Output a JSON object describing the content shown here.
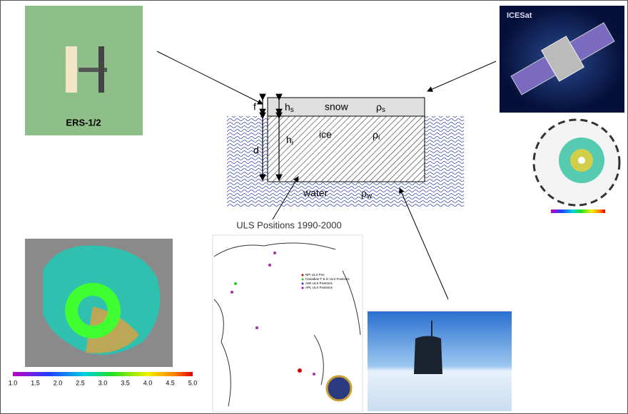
{
  "satellites": {
    "ers": "ERS-1/2",
    "icesat": "ICESat"
  },
  "diagram": {
    "snow": "snow",
    "snow_density": {
      "base": "ρ",
      "sub": "s"
    },
    "snow_thickness": {
      "base": "h",
      "sub": "s"
    },
    "freeboard": "f",
    "draft": "d",
    "ice": "ice",
    "ice_density": {
      "base": "ρ",
      "sub": "i"
    },
    "ice_thickness": {
      "base": "h",
      "sub": "i"
    },
    "water": "water",
    "water_density": {
      "base": "ρ",
      "sub": "w"
    }
  },
  "uls_map": {
    "title": "ULS Positions 1990-2000",
    "legend": [
      "NPI ULS Pos",
      "Canadian F & G ULS Positions",
      "AWI ULS Positions",
      "APL ULS Positions"
    ]
  },
  "thickness_map": {
    "colorbar": [
      "1.0",
      "1.5",
      "2.0",
      "2.5",
      "3.0",
      "3.5",
      "4.0",
      "4.5",
      "5.0"
    ]
  }
}
